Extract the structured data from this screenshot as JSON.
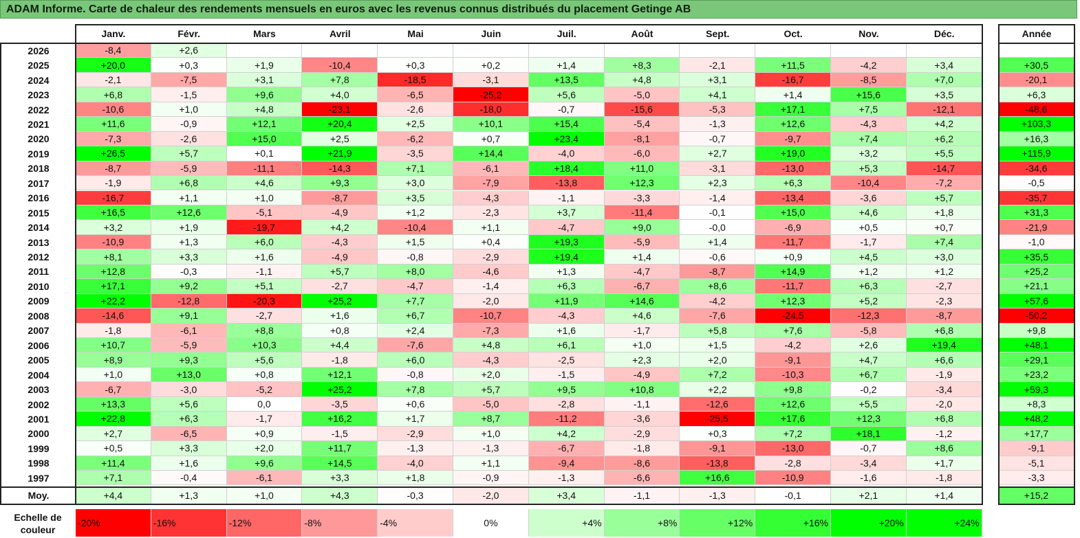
{
  "title": "ADAM Informe. Carte de chaleur des rendements mensuels en euros avec les revenus connus distribués du placement Getinge AB",
  "chart_data": {
    "type": "heatmap",
    "columns": [
      "Janv.",
      "Févr.",
      "Mars",
      "Avril",
      "Mai",
      "Juin",
      "Juil.",
      "Août",
      "Sept.",
      "Oct.",
      "Nov.",
      "Déc."
    ],
    "annual_header": "Année",
    "rows": [
      {
        "year": "2026",
        "values": [
          "-8,4",
          "+2,6",
          "",
          "",
          "",
          "",
          "",
          "",
          "",
          "",
          "",
          ""
        ],
        "annual": ""
      },
      {
        "year": "2025",
        "values": [
          "+20,0",
          "+0,3",
          "+1,9",
          "-10,4",
          "+0,3",
          "+0,2",
          "+1,4",
          "+8,3",
          "-2,1",
          "+11,5",
          "-4,2",
          "+3,4"
        ],
        "annual": "+30,5"
      },
      {
        "year": "2024",
        "values": [
          "-2,1",
          "-7,5",
          "+3,1",
          "+7,8",
          "-18,5",
          "-3,1",
          "+13,5",
          "+4,8",
          "+3,1",
          "-16,7",
          "-8,5",
          "+7,0"
        ],
        "annual": "-20,1"
      },
      {
        "year": "2023",
        "values": [
          "+6,8",
          "-1,5",
          "+9,6",
          "+4,0",
          "-6,5",
          "-25,2",
          "+5,6",
          "-5,0",
          "+4,1",
          "+1,4",
          "+15,6",
          "+3,5"
        ],
        "annual": "+6,3"
      },
      {
        "year": "2022",
        "values": [
          "-10,6",
          "+1,0",
          "+4,8",
          "-23,1",
          "-2,6",
          "-18,0",
          "-0,7",
          "-15,6",
          "-5,3",
          "+17,1",
          "+7,5",
          "-12,1"
        ],
        "annual": "-48,6"
      },
      {
        "year": "2021",
        "values": [
          "+11,6",
          "-0,9",
          "+12,1",
          "+20,4",
          "+2,5",
          "+10,1",
          "+15,4",
          "-5,4",
          "-1,3",
          "+12,6",
          "-4,3",
          "+4,2"
        ],
        "annual": "+103,3"
      },
      {
        "year": "2020",
        "values": [
          "-7,3",
          "-2,6",
          "+15,0",
          "+2,5",
          "-6,2",
          "+0,7",
          "+23,4",
          "-8,1",
          "-0,7",
          "-9,7",
          "+7,4",
          "+6,2"
        ],
        "annual": "+16,3"
      },
      {
        "year": "2019",
        "values": [
          "+26,5",
          "+5,7",
          "+0,1",
          "+21,9",
          "-3,5",
          "+14,4",
          "-4,0",
          "-6,0",
          "+2,7",
          "+19,0",
          "+3,2",
          "+5,5"
        ],
        "annual": "+115,9"
      },
      {
        "year": "2018",
        "values": [
          "-8,7",
          "-5,9",
          "-11,1",
          "-14,3",
          "+7,1",
          "-6,1",
          "+18,4",
          "+11,0",
          "-3,1",
          "-13,0",
          "+5,3",
          "-14,7"
        ],
        "annual": "-34,6"
      },
      {
        "year": "2017",
        "values": [
          "-1,9",
          "+6,8",
          "+4,6",
          "+9,3",
          "+3,0",
          "-7,9",
          "-13,8",
          "+12,3",
          "+2,3",
          "+6,3",
          "-10,4",
          "-7,2"
        ],
        "annual": "-0,5"
      },
      {
        "year": "2016",
        "values": [
          "-16,7",
          "+1,1",
          "+1,0",
          "-8,7",
          "+3,5",
          "-4,3",
          "-1,1",
          "-3,3",
          "-1,4",
          "-13,4",
          "-3,6",
          "+5,7"
        ],
        "annual": "-35,7"
      },
      {
        "year": "2015",
        "values": [
          "+16,5",
          "+12,6",
          "-5,1",
          "-4,9",
          "+1,2",
          "-2,3",
          "+3,7",
          "-11,4",
          "-0,1",
          "+15,0",
          "+4,6",
          "+1,8"
        ],
        "annual": "+31,3"
      },
      {
        "year": "2014",
        "values": [
          "+3,2",
          "+1,9",
          "-19,7",
          "+4,2",
          "-10,4",
          "+1,1",
          "-4,7",
          "+9,0",
          "-0,0",
          "-6,9",
          "+0,5",
          "+0,7"
        ],
        "annual": "-21,9"
      },
      {
        "year": "2013",
        "values": [
          "-10,9",
          "+1,3",
          "+6,0",
          "-4,3",
          "+1,5",
          "+0,4",
          "+19,3",
          "-5,9",
          "+1,4",
          "-11,7",
          "-1,7",
          "+7,4"
        ],
        "annual": "-1,0"
      },
      {
        "year": "2012",
        "values": [
          "+8,1",
          "+3,3",
          "+1,6",
          "-4,9",
          "-0,8",
          "-2,9",
          "+19,4",
          "+1,4",
          "-0,6",
          "+0,9",
          "+4,5",
          "+3,0"
        ],
        "annual": "+35,5"
      },
      {
        "year": "2011",
        "values": [
          "+12,8",
          "-0,3",
          "-1,1",
          "+5,7",
          "+8,0",
          "-4,6",
          "+1,3",
          "-4,7",
          "-8,7",
          "+14,9",
          "+1,2",
          "+1,2"
        ],
        "annual": "+25,2"
      },
      {
        "year": "2010",
        "values": [
          "+17,1",
          "+9,2",
          "+5,1",
          "-2,7",
          "-4,7",
          "-1,4",
          "+6,3",
          "-6,7",
          "+8,6",
          "-11,7",
          "+6,3",
          "-2,7"
        ],
        "annual": "+21,1"
      },
      {
        "year": "2009",
        "values": [
          "+22,2",
          "-12,8",
          "-20,3",
          "+25,2",
          "+7,7",
          "-2,0",
          "+11,9",
          "+14,6",
          "-4,2",
          "+12,3",
          "+5,2",
          "-2,3"
        ],
        "annual": "+57,6"
      },
      {
        "year": "2008",
        "values": [
          "-14,6",
          "+9,1",
          "-2,7",
          "+1,6",
          "+6,7",
          "-10,7",
          "-4,3",
          "+4,6",
          "-7,6",
          "-24,5",
          "-12,3",
          "-8,7"
        ],
        "annual": "-50,2"
      },
      {
        "year": "2007",
        "values": [
          "-1,8",
          "-6,1",
          "+8,8",
          "+0,8",
          "+2,4",
          "-7,3",
          "+1,6",
          "-1,7",
          "+5,8",
          "+7,6",
          "-5,8",
          "+6,8"
        ],
        "annual": "+9,8"
      },
      {
        "year": "2006",
        "values": [
          "+10,7",
          "-5,9",
          "+10,3",
          "+4,4",
          "-7,6",
          "+4,8",
          "+6,1",
          "+1,0",
          "+1,5",
          "-4,2",
          "+2,6",
          "+19,4"
        ],
        "annual": "+48,1"
      },
      {
        "year": "2005",
        "values": [
          "+8,9",
          "+9,3",
          "+5,6",
          "-1,8",
          "+6,0",
          "-4,3",
          "-2,5",
          "+2,3",
          "+2,0",
          "-9,1",
          "+4,7",
          "+6,6"
        ],
        "annual": "+29,1"
      },
      {
        "year": "2004",
        "values": [
          "+1,0",
          "+13,0",
          "+0,8",
          "+12,1",
          "-0,8",
          "+2,0",
          "-1,5",
          "-4,9",
          "+7,2",
          "-10,3",
          "+6,7",
          "-1,9"
        ],
        "annual": "+23,2"
      },
      {
        "year": "2003",
        "values": [
          "-6,7",
          "-3,0",
          "-5,2",
          "+25,2",
          "+7,8",
          "+5,7",
          "+9,5",
          "+10,8",
          "+2,2",
          "+9,8",
          "-0,2",
          "-3,4"
        ],
        "annual": "+59,3"
      },
      {
        "year": "2002",
        "values": [
          "+13,3",
          "+5,6",
          "0,0",
          "-3,5",
          "+0,6",
          "-5,0",
          "-2,8",
          "-1,1",
          "-12,6",
          "+12,6",
          "+5,5",
          "-2,0"
        ],
        "annual": "+8,3"
      },
      {
        "year": "2001",
        "values": [
          "+22,8",
          "+6,3",
          "-1,7",
          "+16,2",
          "+1,7",
          "+8,7",
          "-11,2",
          "-3,6",
          "-25,5",
          "+17,6",
          "+12,3",
          "+6,8"
        ],
        "annual": "+48,2"
      },
      {
        "year": "2000",
        "values": [
          "+2,7",
          "-6,5",
          "+0,9",
          "-1,5",
          "-2,9",
          "+1,0",
          "+4,2",
          "-2,9",
          "+0,3",
          "+7,2",
          "+18,1",
          "-1,2"
        ],
        "annual": "+17,7"
      },
      {
        "year": "1999",
        "values": [
          "+0,5",
          "+3,3",
          "+2,0",
          "+11,7",
          "-1,3",
          "-1,3",
          "-6,7",
          "-1,8",
          "-9,1",
          "-13,0",
          "-0,7",
          "+8,6"
        ],
        "annual": "-9,1"
      },
      {
        "year": "1998",
        "values": [
          "+11,4",
          "+1,6",
          "+9,6",
          "+14,5",
          "-4,0",
          "+1,1",
          "-9,4",
          "-8,6",
          "-13,8",
          "-2,8",
          "-3,4",
          "+1,7"
        ],
        "annual": "-5,1"
      },
      {
        "year": "1997",
        "values": [
          "+7,1",
          "-0,4",
          "-6,1",
          "+3,3",
          "+1,8",
          "-0,9",
          "-1,3",
          "-6,6",
          "+16,6",
          "-10,9",
          "-1,6",
          "-1,8"
        ],
        "annual": "-3,3"
      }
    ],
    "average": {
      "label": "Moy.",
      "values": [
        "+4,4",
        "+1,3",
        "+1,0",
        "+4,3",
        "-0,3",
        "-2,0",
        "+3,4",
        "-1,1",
        "-1,3",
        "-0,1",
        "+2,1",
        "+1,4"
      ],
      "annual": "+15,2"
    },
    "color_scale": {
      "label": "Echelle de couleur",
      "stops": [
        "-20%",
        "-16%",
        "-12%",
        "-8%",
        "-4%",
        "0%",
        "+4%",
        "+8%",
        "+12%",
        "+16%",
        "+20%",
        "+24%"
      ],
      "negative_color": "#ff0000",
      "neutral_color": "#ffffff",
      "positive_color": "#00ff00"
    }
  }
}
